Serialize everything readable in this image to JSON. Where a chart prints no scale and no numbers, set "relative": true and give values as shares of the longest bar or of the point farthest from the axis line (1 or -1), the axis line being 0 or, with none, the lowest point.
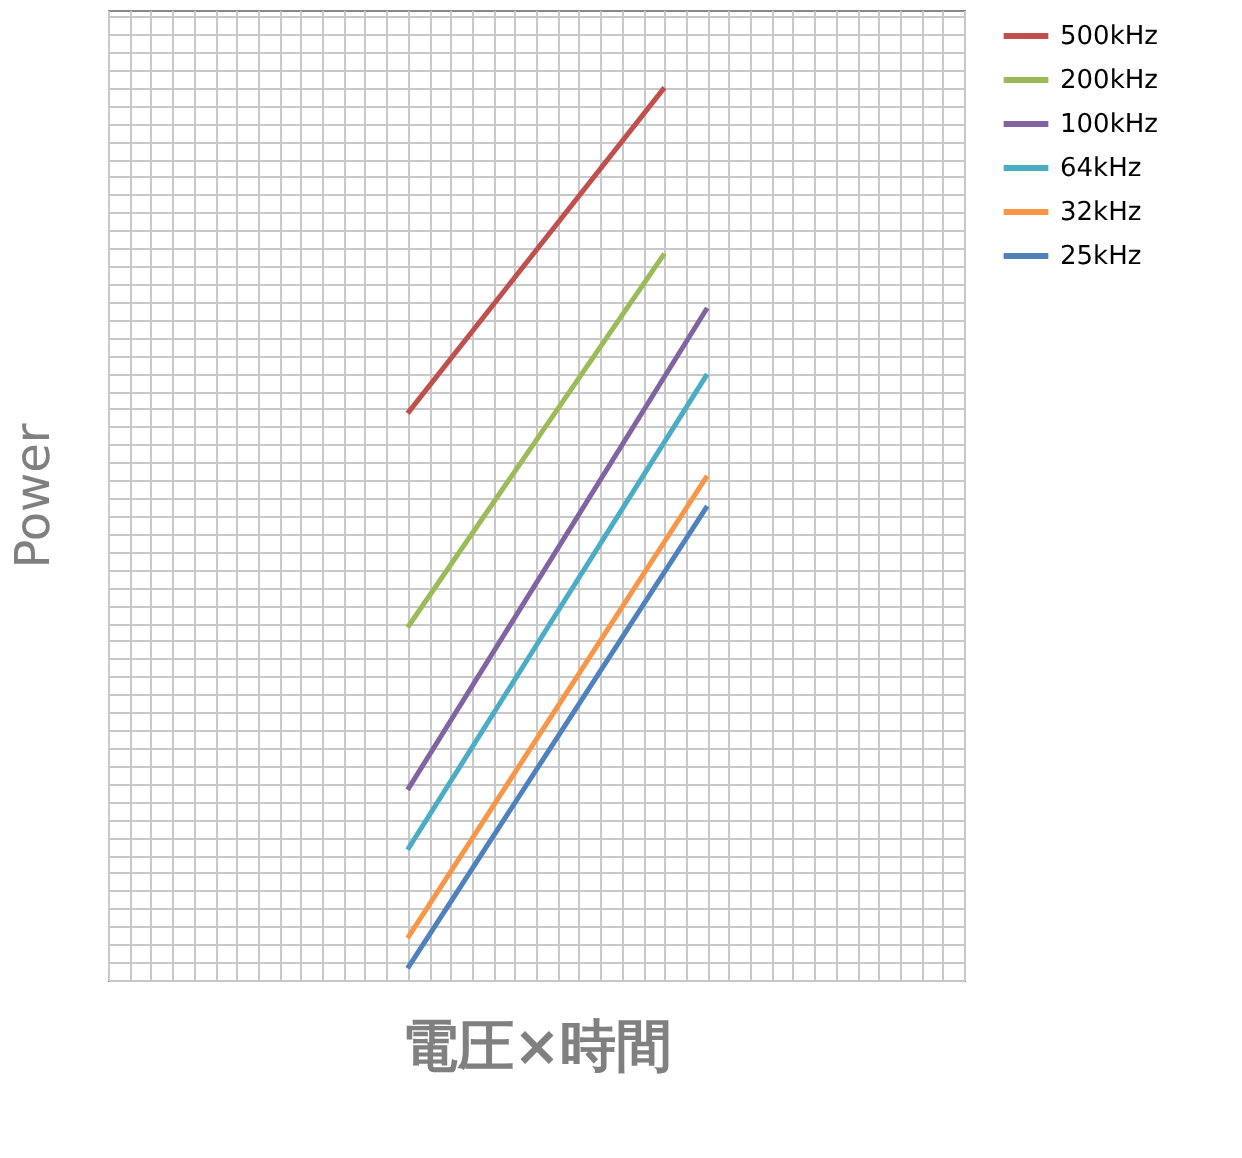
{
  "chart_data": {
    "type": "line",
    "xlabel": "電圧×時間",
    "ylabel": "Power",
    "relative": true,
    "grid": true,
    "legend": "right",
    "tick_labels": false,
    "categories": [
      null,
      null,
      null,
      null,
      null,
      null,
      null,
      null,
      null,
      null,
      null,
      null,
      null,
      null,
      null,
      null,
      null,
      null,
      null,
      null,
      null
    ],
    "series": [
      {
        "name": "500kHz",
        "color": "#c0504d",
        "values": [
          null,
          null,
          null,
          null,
          null,
          null,
          null,
          0.635,
          null,
          null,
          null,
          null,
          null,
          1,
          null,
          null,
          null,
          null,
          null,
          null,
          null
        ]
      },
      {
        "name": "200kHz",
        "color": "#9bbb59",
        "values": [
          null,
          null,
          null,
          null,
          null,
          null,
          null,
          0.395,
          null,
          null,
          null,
          null,
          null,
          0.814,
          null,
          null,
          null,
          null,
          null,
          null,
          null
        ]
      },
      {
        "name": "100kHz",
        "color": "#8064a2",
        "values": [
          null,
          null,
          null,
          null,
          null,
          null,
          null,
          0.213,
          null,
          null,
          null,
          null,
          null,
          null,
          0.753,
          null,
          null,
          null,
          null,
          null,
          null
        ]
      },
      {
        "name": "64kHz",
        "color": "#4bacc6",
        "values": [
          null,
          null,
          null,
          null,
          null,
          null,
          null,
          0.146,
          null,
          null,
          null,
          null,
          null,
          null,
          0.679,
          null,
          null,
          null,
          null,
          null,
          null
        ]
      },
      {
        "name": "32kHz",
        "color": "#f79646",
        "values": [
          null,
          null,
          null,
          null,
          null,
          null,
          null,
          0.047,
          null,
          null,
          null,
          null,
          null,
          null,
          0.565,
          null,
          null,
          null,
          null,
          null,
          null
        ]
      },
      {
        "name": "25kHz",
        "color": "#4f81bd",
        "values": [
          null,
          null,
          null,
          null,
          null,
          null,
          null,
          0.013,
          null,
          null,
          null,
          null,
          null,
          null,
          0.531,
          null,
          null,
          null,
          null,
          null,
          null
        ]
      }
    ]
  }
}
